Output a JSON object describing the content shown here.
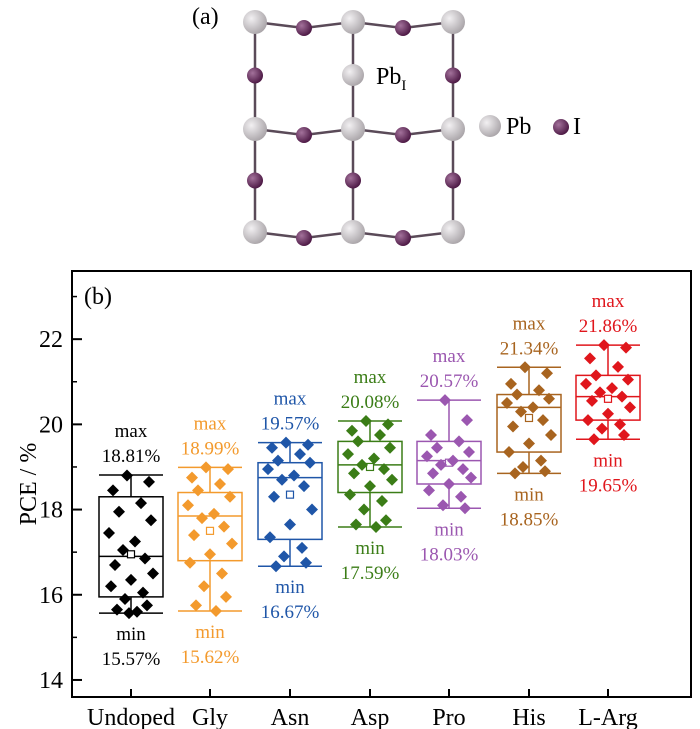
{
  "panel_a": {
    "label": "(a)",
    "pbi_label": "Pb",
    "pbi_subscript": "I",
    "legend_pb_label": "Pb",
    "legend_i_label": "I",
    "colors": {
      "pb": "#a9a4a8",
      "i": "#4a1642",
      "bond": "#5a4a58"
    }
  },
  "chart_data": {
    "type": "box",
    "panel_label": "(b)",
    "ylabel": "PCE / %",
    "xlabel": "",
    "ylim": [
      13.6,
      23.6
    ],
    "yticks": [
      14,
      16,
      18,
      20,
      22
    ],
    "grid": false,
    "categories": [
      "Undoped",
      "Gly",
      "Asn",
      "Asp",
      "Pro",
      "His",
      "L-Arg"
    ],
    "series": [
      {
        "color": "#000000",
        "max": 18.81,
        "min": 15.57,
        "q1": 15.95,
        "median": 16.9,
        "q3": 18.3,
        "mean": 16.95,
        "max_label": "max",
        "max_value": "18.81%",
        "min_label": "min",
        "min_value": "15.57%",
        "points": [
          18.8,
          18.65,
          18.45,
          18.15,
          17.95,
          17.75,
          17.45,
          17.25,
          17.05,
          16.85,
          16.7,
          16.5,
          16.35,
          16.2,
          16.05,
          15.9,
          15.75,
          15.65,
          15.6,
          15.57
        ]
      },
      {
        "color": "#f39a2d",
        "max": 18.99,
        "min": 15.62,
        "q1": 16.8,
        "median": 17.85,
        "q3": 18.4,
        "mean": 17.5,
        "max_label": "max",
        "max_value": "18.99%",
        "min_label": "min",
        "min_value": "15.62%",
        "points": [
          18.99,
          18.95,
          18.75,
          18.6,
          18.45,
          18.3,
          18.1,
          17.9,
          17.8,
          17.6,
          17.4,
          17.2,
          16.95,
          16.75,
          16.5,
          16.2,
          15.95,
          15.75,
          15.62
        ]
      },
      {
        "color": "#1f56a8",
        "max": 19.57,
        "min": 16.67,
        "q1": 17.3,
        "median": 18.75,
        "q3": 19.1,
        "mean": 18.35,
        "max_label": "max",
        "max_value": "19.57%",
        "min_label": "min",
        "min_value": "16.67%",
        "points": [
          19.57,
          19.52,
          19.45,
          19.3,
          19.15,
          19.1,
          18.95,
          18.8,
          18.7,
          18.55,
          18.3,
          18.0,
          17.65,
          17.35,
          17.1,
          16.9,
          16.75,
          16.67
        ]
      },
      {
        "color": "#3b7d17",
        "max": 20.08,
        "min": 17.59,
        "q1": 18.4,
        "median": 19.05,
        "q3": 19.6,
        "mean": 19.0,
        "max_label": "max",
        "max_value": "20.08%",
        "min_label": "min",
        "min_value": "17.59%",
        "points": [
          20.08,
          20.0,
          19.85,
          19.75,
          19.6,
          19.45,
          19.3,
          19.2,
          19.05,
          18.95,
          18.85,
          18.7,
          18.55,
          18.35,
          18.2,
          18.0,
          17.75,
          17.65,
          17.59
        ]
      },
      {
        "color": "#9b57b0",
        "max": 20.57,
        "min": 18.03,
        "q1": 18.6,
        "median": 19.15,
        "q3": 19.6,
        "mean": 19.1,
        "max_label": "max",
        "max_value": "20.57%",
        "min_label": "min",
        "min_value": "18.03%",
        "points": [
          20.57,
          20.1,
          19.75,
          19.6,
          19.45,
          19.35,
          19.25,
          19.15,
          19.05,
          18.95,
          18.85,
          18.75,
          18.6,
          18.45,
          18.3,
          18.1,
          18.03
        ]
      },
      {
        "color": "#a8641f",
        "max": 21.34,
        "min": 18.85,
        "q1": 19.35,
        "median": 20.4,
        "q3": 20.7,
        "mean": 20.15,
        "max_label": "max",
        "max_value": "21.34%",
        "min_label": "min",
        "min_value": "18.85%",
        "points": [
          21.34,
          21.2,
          20.95,
          20.8,
          20.7,
          20.6,
          20.5,
          20.4,
          20.3,
          20.1,
          19.95,
          19.75,
          19.55,
          19.35,
          19.15,
          19.0,
          18.9,
          18.85
        ]
      },
      {
        "color": "#e0161c",
        "max": 21.86,
        "min": 19.65,
        "q1": 20.1,
        "median": 20.65,
        "q3": 21.15,
        "mean": 20.6,
        "max_label": "max",
        "max_value": "21.86%",
        "min_label": "min",
        "min_value": "19.65%",
        "points": [
          21.86,
          21.8,
          21.55,
          21.35,
          21.15,
          21.05,
          20.95,
          20.85,
          20.75,
          20.65,
          20.55,
          20.4,
          20.25,
          20.1,
          20.0,
          19.9,
          19.75,
          19.65
        ]
      }
    ]
  }
}
